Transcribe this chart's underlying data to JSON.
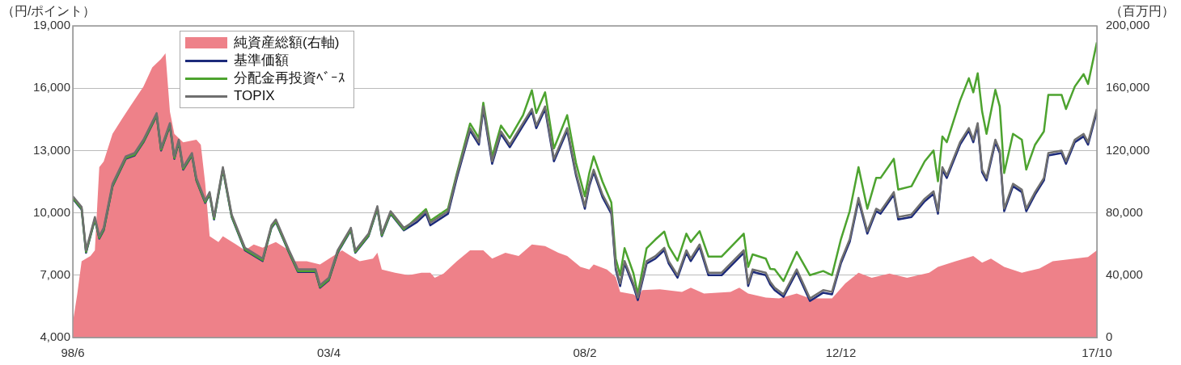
{
  "chart_data": {
    "type": "line",
    "ylabel": "（円/ポイント）",
    "y2label": "（百万円）",
    "legend": "top left",
    "grid": "y",
    "xlim": [
      "1998-06",
      "2017-10"
    ],
    "xticks": [
      {
        "value": "1998-06",
        "label": "98/6"
      },
      {
        "value": "2003-04",
        "label": "03/4"
      },
      {
        "value": "2008-02",
        "label": "08/2"
      },
      {
        "value": "2012-12",
        "label": "12/12"
      },
      {
        "value": "2017-10",
        "label": "17/10"
      }
    ],
    "ylim": [
      4000,
      19000
    ],
    "yticks": [
      {
        "value": 4000,
        "label": "4,000"
      },
      {
        "value": 7000,
        "label": "7,000"
      },
      {
        "value": 10000,
        "label": "10,000"
      },
      {
        "value": 13000,
        "label": "13,000"
      },
      {
        "value": 16000,
        "label": "16,000"
      },
      {
        "value": 19000,
        "label": "19,000"
      }
    ],
    "y2lim": [
      0,
      200000
    ],
    "y2ticks": [
      {
        "value": 0,
        "label": "0"
      },
      {
        "value": 40000,
        "label": "40,000"
      },
      {
        "value": 80000,
        "label": "80,000"
      },
      {
        "value": 120000,
        "label": "120,000"
      },
      {
        "value": 160000,
        "label": "160,000"
      },
      {
        "value": 200000,
        "label": "200,000"
      }
    ],
    "x": [
      "1998-06",
      "1998-08",
      "1998-09",
      "1998-11",
      "1998-12",
      "1999-01",
      "1999-03",
      "1999-06",
      "1999-08",
      "1999-10",
      "2000-01",
      "2000-02",
      "2000-04",
      "2000-05",
      "2000-06",
      "2000-07",
      "2000-09",
      "2000-10",
      "2000-12",
      "2001-01",
      "2001-02",
      "2001-04",
      "2001-06",
      "2001-09",
      "2002-01",
      "2002-03",
      "2002-04",
      "2002-07",
      "2002-09",
      "2003-01",
      "2003-02",
      "2003-04",
      "2003-06",
      "2003-09",
      "2003-10",
      "2004-01",
      "2004-03",
      "2004-04",
      "2004-06",
      "2004-09",
      "2004-12",
      "2005-02",
      "2005-03",
      "2005-07",
      "2005-09",
      "2005-12",
      "2006-02",
      "2006-03",
      "2006-05",
      "2006-07",
      "2006-09",
      "2006-12",
      "2007-02",
      "2007-03",
      "2007-05",
      "2007-07",
      "2007-10",
      "2007-12",
      "2008-02",
      "2008-03",
      "2008-04",
      "2008-06",
      "2008-08",
      "2008-09",
      "2008-10",
      "2008-11",
      "2009-01",
      "2009-02",
      "2009-04",
      "2009-06",
      "2009-08",
      "2009-09",
      "2009-11",
      "2010-01",
      "2010-02",
      "2010-04",
      "2010-06",
      "2010-09",
      "2011-02",
      "2011-03",
      "2011-04",
      "2011-07",
      "2011-08",
      "2011-09",
      "2011-11",
      "2012-02",
      "2012-05",
      "2012-08",
      "2012-10",
      "2012-12",
      "2013-02",
      "2013-04",
      "2013-06",
      "2013-08",
      "2013-09",
      "2013-12",
      "2014-01",
      "2014-04",
      "2014-07",
      "2014-09",
      "2014-10",
      "2014-11",
      "2014-12",
      "2015-03",
      "2015-05",
      "2015-06",
      "2015-07",
      "2015-08",
      "2015-09",
      "2015-11",
      "2015-12",
      "2016-01",
      "2016-03",
      "2016-05",
      "2016-06",
      "2016-08",
      "2016-10",
      "2016-11",
      "2017-02",
      "2017-03",
      "2017-05",
      "2017-07",
      "2017-08",
      "2017-10"
    ],
    "series": [
      {
        "name": "純資産総額(右軸)",
        "type": "area",
        "axis": "y2",
        "color": "#ee8189",
        "x": [
          "1998-06",
          "1998-07",
          "1998-08",
          "1998-10",
          "1998-11",
          "1998-12",
          "1999-01",
          "1999-03",
          "1999-05",
          "1999-07",
          "1999-10",
          "1999-12",
          "2000-02",
          "2000-03",
          "2000-04",
          "2000-05",
          "2000-07",
          "2000-10",
          "2000-11",
          "2000-12",
          "2001-01",
          "2001-03",
          "2001-04",
          "2001-07",
          "2001-09",
          "2001-11",
          "2002-01",
          "2002-04",
          "2002-07",
          "2002-08",
          "2002-11",
          "2003-02",
          "2003-05",
          "2003-07",
          "2003-09",
          "2003-11",
          "2004-02",
          "2004-03",
          "2004-04",
          "2004-07",
          "2004-10",
          "2005-01",
          "2005-03",
          "2005-04",
          "2005-06",
          "2005-09",
          "2005-12",
          "2006-03",
          "2006-05",
          "2006-08",
          "2006-11",
          "2007-02",
          "2007-05",
          "2007-08",
          "2007-10",
          "2008-01",
          "2008-03",
          "2008-04",
          "2008-07",
          "2008-09",
          "2008-10",
          "2009-01",
          "2009-02",
          "2009-03",
          "2009-07",
          "2009-12",
          "2010-02",
          "2010-05",
          "2010-11",
          "2011-01",
          "2011-03",
          "2011-07",
          "2011-10",
          "2012-02",
          "2012-05",
          "2012-10",
          "2013-01",
          "2013-04",
          "2013-07",
          "2013-11",
          "2014-03",
          "2014-08",
          "2014-10",
          "2015-02",
          "2015-06",
          "2015-08",
          "2015-10",
          "2016-01",
          "2016-05",
          "2016-09",
          "2016-12",
          "2017-05",
          "2017-08",
          "2017-10"
        ],
        "values": [
          9600,
          27700,
          49000,
          52300,
          56000,
          109300,
          113000,
          130700,
          139700,
          148300,
          161000,
          173300,
          178700,
          182400,
          145000,
          130700,
          125300,
          127000,
          123700,
          98700,
          65000,
          61300,
          65000,
          59700,
          56000,
          59700,
          57600,
          61300,
          56000,
          49000,
          49000,
          46900,
          52300,
          56000,
          52300,
          49000,
          50700,
          54400,
          43700,
          41600,
          40000,
          41600,
          41600,
          38400,
          41100,
          49000,
          56000,
          56000,
          50700,
          54400,
          52300,
          59700,
          58700,
          54400,
          52300,
          45300,
          43700,
          46900,
          43700,
          38900,
          29300,
          27700,
          25600,
          30400,
          30900,
          29300,
          32000,
          28300,
          29300,
          32000,
          28300,
          25600,
          25100,
          28300,
          25100,
          25100,
          34700,
          41600,
          38400,
          41100,
          38400,
          41600,
          45300,
          49000,
          52300,
          48000,
          50700,
          45300,
          41600,
          44300,
          49000,
          50700,
          51700,
          56000
        ]
      },
      {
        "name": "基準価額",
        "color": "#1c2a7a",
        "values": [
          10680,
          10160,
          8080,
          9680,
          8760,
          9160,
          11280,
          12600,
          12760,
          13400,
          14680,
          13000,
          14200,
          12600,
          13400,
          12080,
          12760,
          11560,
          10480,
          10880,
          9680,
          12080,
          9800,
          8200,
          7680,
          9280,
          9560,
          8080,
          7160,
          7160,
          6400,
          6760,
          8080,
          9160,
          8080,
          8880,
          10200,
          8880,
          9960,
          9160,
          9560,
          9960,
          9400,
          9960,
          11680,
          13960,
          13280,
          15000,
          12360,
          13800,
          13160,
          14200,
          14880,
          14080,
          15000,
          12480,
          13960,
          11800,
          10200,
          11280,
          11960,
          10760,
          9960,
          7280,
          6480,
          7560,
          6480,
          5800,
          7560,
          7800,
          8200,
          7560,
          6880,
          8080,
          7680,
          8360,
          7000,
          7000,
          8080,
          6480,
          7160,
          7000,
          6560,
          6280,
          5960,
          7160,
          5760,
          6160,
          6080,
          7560,
          8600,
          10600,
          9000,
          10080,
          9960,
          10880,
          9680,
          9800,
          10560,
          10920,
          9960,
          12080,
          11680,
          13280,
          13960,
          13400,
          14200,
          11960,
          11560,
          13400,
          12880,
          10080,
          11280,
          11000,
          10080,
          10880,
          11560,
          12760,
          12880,
          12360,
          13400,
          13680,
          13280,
          14880
        ]
      },
      {
        "name": "分配金再投資ﾍﾞｰｽ",
        "color": "#4da32f",
        "values": [
          10720,
          10200,
          8120,
          9720,
          8800,
          9200,
          11320,
          12640,
          12800,
          13440,
          14720,
          13040,
          14240,
          12640,
          13440,
          12120,
          12800,
          11600,
          10520,
          10920,
          9720,
          12120,
          9840,
          8240,
          7720,
          9320,
          9600,
          8120,
          7200,
          7200,
          6440,
          6800,
          8120,
          9200,
          8120,
          8920,
          10240,
          8920,
          10000,
          9200,
          9780,
          10180,
          9620,
          10200,
          11900,
          14300,
          13600,
          15300,
          12700,
          14200,
          13600,
          14700,
          15900,
          14800,
          15800,
          13100,
          14700,
          12400,
          10800,
          11900,
          12720,
          11500,
          10500,
          7800,
          7000,
          8300,
          7100,
          6100,
          8300,
          8720,
          9100,
          8400,
          7700,
          9000,
          8600,
          9120,
          7900,
          7900,
          9000,
          7400,
          8000,
          7800,
          7300,
          7280,
          6720,
          8120,
          7000,
          7200,
          7000,
          8720,
          10080,
          12200,
          10200,
          11680,
          11680,
          12600,
          11120,
          11280,
          12480,
          13000,
          11520,
          13680,
          13400,
          15400,
          16480,
          15800,
          16720,
          14880,
          13800,
          15920,
          15120,
          11920,
          13800,
          13520,
          12080,
          13280,
          13920,
          15680,
          15680,
          15000,
          16080,
          16680,
          16200,
          18200
        ]
      },
      {
        "name": "TOPIX",
        "color": "#6f6f6f",
        "values": [
          10800,
          10280,
          8200,
          9800,
          8880,
          9280,
          11400,
          12720,
          12880,
          13520,
          14800,
          13120,
          14320,
          12720,
          13520,
          12200,
          12880,
          11680,
          10600,
          11000,
          9800,
          12200,
          9920,
          8320,
          7800,
          9400,
          9680,
          8200,
          7280,
          7280,
          6520,
          6880,
          8200,
          9280,
          8200,
          9000,
          10320,
          9000,
          10080,
          9280,
          9680,
          10080,
          9520,
          10080,
          11800,
          14080,
          13400,
          15120,
          12480,
          13920,
          13280,
          14320,
          15000,
          14200,
          15120,
          12600,
          14080,
          11920,
          10320,
          11400,
          12080,
          10880,
          10080,
          7400,
          6600,
          7680,
          6600,
          5920,
          7680,
          7920,
          8320,
          7680,
          7000,
          8200,
          7800,
          8480,
          7120,
          7120,
          8200,
          6600,
          7280,
          7120,
          6680,
          6400,
          6080,
          7280,
          5880,
          6280,
          6200,
          7680,
          8720,
          10720,
          9120,
          10200,
          10080,
          11000,
          9800,
          9920,
          10680,
          11040,
          10080,
          12200,
          11800,
          13400,
          14080,
          13520,
          14320,
          12080,
          11680,
          13520,
          13000,
          10200,
          11400,
          11120,
          10200,
          11000,
          11680,
          12880,
          13000,
          12480,
          13520,
          13800,
          13400,
          15000
        ]
      }
    ]
  }
}
